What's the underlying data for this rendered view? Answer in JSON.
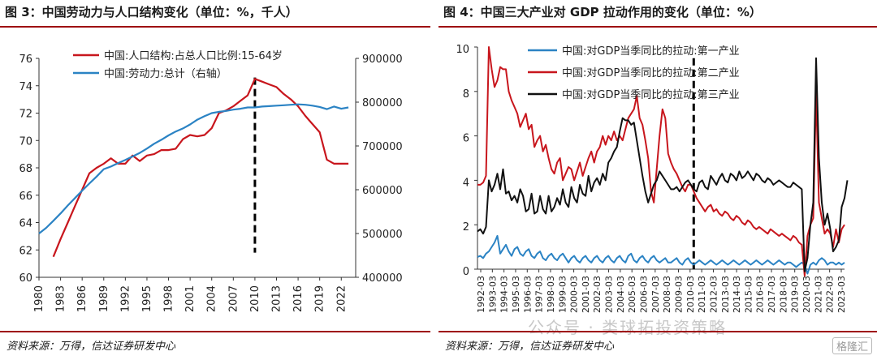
{
  "left_panel": {
    "title": "图 3：中国劳动力与人口结构变化（单位：%，千人）",
    "source": "资料来源：万得，信达证券研发中心"
  },
  "right_panel": {
    "title": "图 4：中国三大产业对 GDP 拉动作用的变化（单位：%）",
    "source": "资料来源：万得，信达证券研发中心",
    "watermark": "公众号 · 类球拓投资策略",
    "logo": "格隆汇"
  },
  "colors": {
    "red": "#c8161d",
    "blue": "#2b83c4",
    "black": "#111111",
    "accent": "#9e0a12"
  },
  "chart_data": [
    {
      "type": "line",
      "title": "",
      "x": [
        1980,
        1981,
        1982,
        1983,
        1984,
        1985,
        1986,
        1987,
        1988,
        1989,
        1990,
        1991,
        1992,
        1993,
        1994,
        1995,
        1996,
        1997,
        1998,
        1999,
        2000,
        2001,
        2002,
        2003,
        2004,
        2005,
        2006,
        2007,
        2008,
        2009,
        2010,
        2011,
        2012,
        2013,
        2014,
        2015,
        2016,
        2017,
        2018,
        2019,
        2020,
        2021,
        2022,
        2023
      ],
      "xticks": [
        "1980",
        "1983",
        "1986",
        "1989",
        "1992",
        "1995",
        "1998",
        "2001",
        "2004",
        "2007",
        "2010",
        "2013",
        "2016",
        "2019",
        "2022"
      ],
      "xlim": [
        1980,
        2024
      ],
      "ylim_left": [
        60,
        76
      ],
      "yticks_left": [
        "60",
        "62",
        "64",
        "66",
        "68",
        "70",
        "72",
        "74",
        "76"
      ],
      "ylim_right": [
        400000,
        900000
      ],
      "yticks_right": [
        "400000",
        "500000",
        "600000",
        "700000",
        "800000",
        "900000"
      ],
      "marker_x": 2010,
      "series": [
        {
          "name": "中国:人口结构:占总人口比例:15-64岁",
          "axis": "left",
          "color": "#c8161d",
          "values": [
            null,
            null,
            61.5,
            62.8,
            64.0,
            65.2,
            66.4,
            67.6,
            68.0,
            68.3,
            68.7,
            68.3,
            68.3,
            68.9,
            68.5,
            68.9,
            69.0,
            69.3,
            69.3,
            69.4,
            70.1,
            70.4,
            70.3,
            70.4,
            70.9,
            72.0,
            72.2,
            72.5,
            72.9,
            73.3,
            74.5,
            74.3,
            74.1,
            73.9,
            73.4,
            73.0,
            72.5,
            71.8,
            71.2,
            70.6,
            68.6,
            68.3,
            68.3,
            68.3
          ]
        },
        {
          "name": "中国:劳动力:总计（右轴）",
          "axis": "right",
          "color": "#2b83c4",
          "values": [
            500000,
            513000,
            529000,
            546000,
            564000,
            581000,
            598000,
            614000,
            630000,
            647000,
            653000,
            661000,
            668000,
            676000,
            684000,
            694000,
            705000,
            714000,
            724000,
            733000,
            740000,
            749000,
            760000,
            768000,
            775000,
            778000,
            780000,
            783000,
            785000,
            788000,
            788000,
            790000,
            791000,
            792000,
            793000,
            794000,
            795000,
            794000,
            792000,
            789000,
            784000,
            790000,
            785000,
            788000
          ]
        }
      ]
    },
    {
      "type": "line",
      "title": "",
      "xticks": [
        "1992-03",
        "1993-03",
        "1994-03",
        "1995-03",
        "1996-03",
        "1997-03",
        "1998-03",
        "1999-03",
        "2000-03",
        "2001-03",
        "2002-03",
        "2003-03",
        "2004-03",
        "2005-03",
        "2006-03",
        "2007-03",
        "2008-03",
        "2009-03",
        "2010-03",
        "2011-03",
        "2012-03",
        "2013-03",
        "2014-03",
        "2015-03",
        "2016-03",
        "2017-03",
        "2018-03",
        "2019-03",
        "2020-03",
        "2021-03",
        "2022-03",
        "2023-03"
      ],
      "ylim": [
        0,
        10
      ],
      "yticks": [
        "0",
        "2",
        "4",
        "6",
        "8",
        "10"
      ],
      "marker_index": 19,
      "series": [
        {
          "name": "中国:对GDP当季同比的拉动:第一产业",
          "color": "#2b83c4",
          "values": [
            0.55,
            0.6,
            0.5,
            0.7,
            0.8,
            1.0,
            1.2,
            1.5,
            0.7,
            0.9,
            1.1,
            0.8,
            0.6,
            0.9,
            1.0,
            0.7,
            0.6,
            0.8,
            0.9,
            0.6,
            0.5,
            0.7,
            0.8,
            0.5,
            0.4,
            0.6,
            0.7,
            0.5,
            0.4,
            0.6,
            0.7,
            0.5,
            0.3,
            0.5,
            0.6,
            0.4,
            0.3,
            0.5,
            0.6,
            0.4,
            0.3,
            0.5,
            0.6,
            0.4,
            0.3,
            0.5,
            0.6,
            0.4,
            0.3,
            0.5,
            0.6,
            0.4,
            0.3,
            0.6,
            0.7,
            0.4,
            0.3,
            0.5,
            0.6,
            0.4,
            0.3,
            0.5,
            0.6,
            0.4,
            0.3,
            0.4,
            0.5,
            0.3,
            0.3,
            0.4,
            0.5,
            0.3,
            0.2,
            0.4,
            0.5,
            0.3,
            0.2,
            0.3,
            0.4,
            0.3,
            0.2,
            0.3,
            0.4,
            0.3,
            0.2,
            0.3,
            0.4,
            0.3,
            0.2,
            0.3,
            0.4,
            0.3,
            0.2,
            0.3,
            0.4,
            0.3,
            0.2,
            0.3,
            0.4,
            0.3,
            0.2,
            0.3,
            0.4,
            0.3,
            0.2,
            0.3,
            0.4,
            0.3,
            0.2,
            0.3,
            0.3,
            0.2,
            0.1,
            0.2,
            0.3,
            0.2,
            -0.2,
            0.2,
            0.3,
            0.2,
            0.4,
            0.5,
            0.4,
            0.2,
            0.3,
            0.3,
            0.2,
            0.3,
            0.2,
            0.3
          ]
        },
        {
          "name": "中国:对GDP当季同比的拉动:第二产业",
          "color": "#c8161d",
          "values": [
            3.8,
            3.8,
            3.9,
            4.2,
            10.0,
            9.0,
            8.2,
            8.5,
            9.1,
            9.0,
            9.0,
            8.0,
            7.6,
            7.3,
            7.0,
            6.4,
            6.7,
            7.0,
            6.3,
            6.5,
            5.5,
            5.8,
            6.0,
            5.3,
            5.6,
            5.0,
            4.5,
            4.3,
            4.8,
            5.0,
            4.0,
            4.3,
            4.6,
            4.5,
            4.0,
            4.4,
            4.8,
            4.2,
            4.6,
            5.0,
            5.3,
            4.8,
            5.3,
            5.5,
            6.0,
            5.6,
            6.0,
            5.8,
            6.2,
            5.8,
            6.0,
            5.8,
            6.3,
            6.8,
            7.0,
            7.2,
            7.8,
            6.8,
            6.5,
            5.8,
            5.0,
            3.5,
            3.0,
            4.5,
            6.0,
            7.2,
            6.8,
            5.2,
            4.8,
            4.5,
            4.3,
            4.0,
            3.7,
            3.5,
            3.8,
            3.8,
            3.5,
            3.2,
            3.0,
            2.8,
            2.6,
            2.8,
            2.9,
            2.6,
            2.7,
            2.5,
            2.4,
            2.6,
            2.5,
            2.3,
            2.2,
            2.4,
            2.3,
            2.1,
            2.0,
            2.2,
            2.1,
            1.9,
            1.8,
            1.9,
            1.8,
            1.7,
            1.6,
            1.8,
            1.7,
            1.6,
            1.5,
            1.6,
            1.5,
            1.4,
            1.3,
            1.5,
            1.4,
            1.2,
            1.1,
            -0.3,
            1.5,
            2.0,
            2.3,
            8.0,
            3.0,
            2.3,
            1.6,
            1.8,
            1.6,
            1.0,
            1.8,
            1.2,
            1.8,
            2.0
          ]
        },
        {
          "name": "中国:对GDP当季同比的拉动:第三产业",
          "color": "#111111",
          "values": [
            1.7,
            1.8,
            1.6,
            1.9,
            4.0,
            3.5,
            3.8,
            4.3,
            3.6,
            4.5,
            3.4,
            3.5,
            3.1,
            3.3,
            3.0,
            3.6,
            3.3,
            2.6,
            2.7,
            3.4,
            2.5,
            2.6,
            3.3,
            2.7,
            2.5,
            3.3,
            2.6,
            2.8,
            3.2,
            2.9,
            3.6,
            3.0,
            2.8,
            3.7,
            3.2,
            3.0,
            3.8,
            3.4,
            3.3,
            4.2,
            3.5,
            3.9,
            4.1,
            3.8,
            4.3,
            4.0,
            4.8,
            5.0,
            5.3,
            5.5,
            6.2,
            6.8,
            6.7,
            6.7,
            6.5,
            6.6,
            5.8,
            5.0,
            4.2,
            3.5,
            3.0,
            3.4,
            3.8,
            4.0,
            4.4,
            4.2,
            4.0,
            3.8,
            3.6,
            3.6,
            3.7,
            3.5,
            3.7,
            3.9,
            4.0,
            3.8,
            3.6,
            3.5,
            3.9,
            4.0,
            3.7,
            3.6,
            4.2,
            4.0,
            3.8,
            4.1,
            4.3,
            4.0,
            3.9,
            4.3,
            4.2,
            4.0,
            4.4,
            4.1,
            4.2,
            4.4,
            4.2,
            4.0,
            4.3,
            4.2,
            4.0,
            3.9,
            4.1,
            4.0,
            3.8,
            3.9,
            4.0,
            3.9,
            3.8,
            3.7,
            3.7,
            3.9,
            3.8,
            3.7,
            3.6,
            -0.1,
            0.5,
            2.0,
            3.0,
            9.5,
            5.0,
            3.0,
            2.0,
            2.5,
            1.8,
            0.8,
            1.0,
            1.3,
            2.8,
            3.2,
            4.0
          ]
        }
      ]
    }
  ]
}
